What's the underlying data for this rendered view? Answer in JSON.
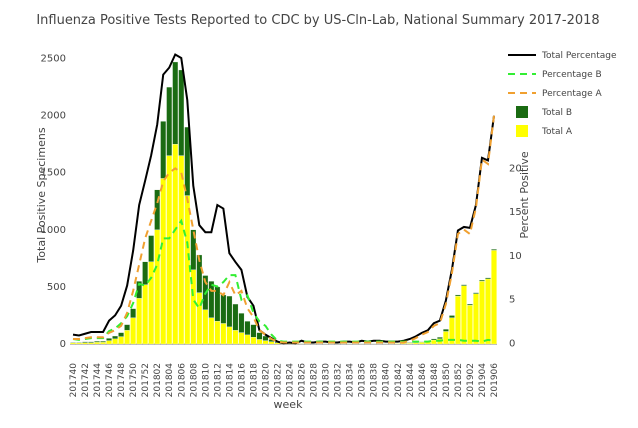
{
  "chart_data": {
    "type": "bar",
    "title": "Influenza Positive Tests Reported to CDC by US-Cln-Lab, National Summary 2017-2018",
    "x_label": "week",
    "y_label": "Total Positive Specimens",
    "y2_label": "Percent Positive",
    "categories": [
      "201740",
      null,
      "201742",
      null,
      "201744",
      null,
      "201746",
      null,
      "201748",
      null,
      "201750",
      null,
      "201752",
      null,
      "201802",
      null,
      "201804",
      null,
      "201806",
      null,
      "201808",
      null,
      "201810",
      null,
      "201812",
      null,
      "201814",
      null,
      "201816",
      null,
      "201818",
      null,
      "201820",
      null,
      "201822",
      null,
      "201824",
      null,
      "201826",
      null,
      "201828",
      null,
      "201830",
      null,
      "201832",
      null,
      "201834",
      null,
      "201836",
      null,
      "201838",
      null,
      "201840",
      null,
      "201842",
      null,
      "201844",
      null,
      "201846",
      null,
      "201848",
      null,
      "201850",
      null,
      "201852",
      null,
      "201902",
      null,
      "201904",
      null,
      "201906"
    ],
    "ylim": [
      -140,
      2750
    ],
    "yticks": [
      0,
      500,
      1000,
      1500,
      2000,
      2500
    ],
    "y2lim": [
      -1.9,
      35.8
    ],
    "y2ticks": [
      0,
      5,
      10,
      15,
      20,
      25,
      30
    ],
    "zero_line": true,
    "series": [
      {
        "name": "Total Percentage",
        "type": "line",
        "dash": false,
        "axis": "y2",
        "color": "#000000",
        "values": [
          1.0,
          0.9,
          1.1,
          1.3,
          1.3,
          1.3,
          2.6,
          3.2,
          4.3,
          6.6,
          10.6,
          15.8,
          18.6,
          21.5,
          25,
          30.7,
          31.5,
          33,
          32.6,
          27.8,
          18,
          13.5,
          12.7,
          12.7,
          15.8,
          15.4,
          10.3,
          9.3,
          8.4,
          5.3,
          4.3,
          1.5,
          1.0,
          0.6,
          0.2,
          0,
          0.1,
          0,
          0.3,
          0.1,
          0.1,
          0.2,
          0.2,
          0.1,
          0.1,
          0.2,
          0.2,
          0.1,
          0.3,
          0.2,
          0.3,
          0.3,
          0.2,
          0.2,
          0.2,
          0.3,
          0.5,
          0.8,
          1.2,
          1.5,
          2.3,
          2.6,
          4.9,
          8.4,
          12.9,
          13.3,
          13.2,
          15.8,
          21.2,
          20.9,
          26
        ]
      },
      {
        "name": "Percentage B",
        "type": "line",
        "dash": true,
        "axis": "y2",
        "color": "#33ee33",
        "values": [
          0.5,
          0.4,
          0.5,
          0.6,
          0.6,
          0.6,
          1.4,
          1.7,
          2.3,
          3.1,
          4.6,
          6.8,
          6.6,
          7.5,
          9,
          12,
          12,
          13,
          14,
          11.5,
          5,
          4,
          5.7,
          6.7,
          6.5,
          7,
          7.8,
          7.8,
          5,
          5.5,
          3.5,
          2.5,
          2,
          1,
          0.3,
          0.2,
          0.2,
          0.2,
          0.2,
          0.2,
          0.2,
          0.2,
          0.2,
          0.2,
          0.2,
          0.2,
          0.2,
          0.2,
          0.2,
          0.2,
          0.2,
          0.2,
          0.2,
          0.2,
          0.2,
          0.2,
          0.2,
          0.2,
          0.2,
          0.2,
          0.3,
          0.3,
          0.4,
          0.4,
          0.4,
          0.3,
          0.3,
          0.3,
          0.2,
          0.4,
          0.3
        ]
      },
      {
        "name": "Percentage A",
        "type": "line",
        "dash": true,
        "axis": "y2",
        "color": "#f0a030",
        "values": [
          0.5,
          0.5,
          0.6,
          0.7,
          0.7,
          0.7,
          1.2,
          1.5,
          2,
          3.5,
          6,
          9,
          12,
          14,
          16,
          18.5,
          19.5,
          20,
          19.5,
          16.5,
          13,
          9.5,
          7,
          6,
          6,
          5.5,
          7,
          5.5,
          6,
          4,
          3,
          1.5,
          1,
          0.5,
          0.2,
          0.1,
          0.1,
          0.1,
          0.1,
          0.1,
          0.1,
          0.1,
          0.1,
          0.1,
          0.1,
          0.1,
          0.1,
          0.1,
          0.1,
          0.1,
          0.1,
          0.1,
          0.1,
          0.1,
          0.1,
          0.1,
          0.3,
          0.6,
          1,
          1.3,
          2,
          2.3,
          4.5,
          8,
          12.5,
          13,
          12.5,
          15.5,
          21,
          20.5,
          26
        ]
      },
      {
        "name": "Total B",
        "type": "bar",
        "stack": 1,
        "color": "#1a6b12",
        "values": [
          5,
          5,
          8,
          8,
          10,
          10,
          20,
          25,
          35,
          50,
          80,
          150,
          200,
          230,
          350,
          500,
          600,
          720,
          750,
          600,
          350,
          330,
          300,
          320,
          300,
          250,
          270,
          230,
          170,
          120,
          110,
          60,
          40,
          20,
          10,
          3,
          3,
          3,
          3,
          2,
          2,
          2,
          2,
          2,
          2,
          2,
          2,
          2,
          2,
          2,
          2,
          2,
          2,
          2,
          3,
          4,
          5,
          5,
          5,
          5,
          10,
          15,
          20,
          20,
          10,
          10,
          10,
          10,
          10,
          10,
          10
        ]
      },
      {
        "name": "Total A",
        "type": "bar",
        "stack": 0,
        "color": "#ffff00",
        "values": [
          10,
          10,
          12,
          12,
          15,
          15,
          30,
          45,
          65,
          120,
          230,
          400,
          520,
          720,
          1000,
          1450,
          1650,
          1750,
          1650,
          1300,
          650,
          450,
          300,
          230,
          200,
          180,
          150,
          120,
          100,
          80,
          60,
          40,
          30,
          20,
          10,
          5,
          5,
          4,
          4,
          3,
          3,
          3,
          3,
          3,
          3,
          3,
          3,
          3,
          3,
          3,
          3,
          3,
          3,
          4,
          5,
          6,
          8,
          10,
          15,
          20,
          35,
          45,
          110,
          230,
          420,
          510,
          340,
          440,
          550,
          570,
          820
        ]
      }
    ]
  }
}
